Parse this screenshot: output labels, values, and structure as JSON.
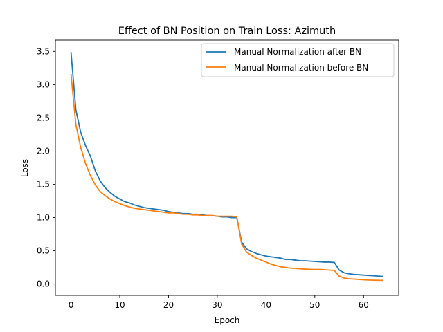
{
  "chart_data": {
    "type": "line",
    "title": "Effect of BN Position on Train Loss: Azimuth",
    "xlabel": "Epoch",
    "ylabel": "Loss",
    "xlim": [
      -3.2,
      67.2
    ],
    "ylim": [
      -0.17,
      3.67
    ],
    "xticks": [
      0,
      10,
      20,
      30,
      40,
      50,
      60
    ],
    "yticks": [
      0.0,
      0.5,
      1.0,
      1.5,
      2.0,
      2.5,
      3.0,
      3.5
    ],
    "legend_position": "top-right",
    "grid": false,
    "series": [
      {
        "name": "Manual Normalization after BN",
        "color": "#1f77b4",
        "x": [
          0,
          1,
          2,
          3,
          4,
          5,
          6,
          7,
          8,
          9,
          10,
          11,
          12,
          13,
          14,
          15,
          16,
          17,
          18,
          19,
          20,
          21,
          22,
          23,
          24,
          25,
          26,
          27,
          28,
          29,
          30,
          31,
          32,
          33,
          34,
          35,
          36,
          37,
          38,
          39,
          40,
          41,
          42,
          43,
          44,
          45,
          46,
          47,
          48,
          49,
          50,
          51,
          52,
          53,
          54,
          55,
          56,
          57,
          58,
          59,
          60,
          61,
          62,
          63,
          64
        ],
        "values": [
          3.49,
          2.62,
          2.28,
          2.08,
          1.92,
          1.7,
          1.55,
          1.45,
          1.38,
          1.32,
          1.28,
          1.24,
          1.22,
          1.19,
          1.17,
          1.15,
          1.14,
          1.13,
          1.12,
          1.11,
          1.09,
          1.08,
          1.07,
          1.06,
          1.06,
          1.05,
          1.05,
          1.04,
          1.03,
          1.03,
          1.02,
          1.01,
          1.01,
          1.0,
          1.0,
          0.63,
          0.53,
          0.49,
          0.46,
          0.44,
          0.42,
          0.41,
          0.4,
          0.39,
          0.37,
          0.37,
          0.36,
          0.35,
          0.35,
          0.345,
          0.34,
          0.335,
          0.33,
          0.33,
          0.325,
          0.21,
          0.17,
          0.155,
          0.145,
          0.14,
          0.135,
          0.13,
          0.125,
          0.12,
          0.115
        ]
      },
      {
        "name": "Manual Normalization before BN",
        "color": "#ff7f0e",
        "x": [
          0,
          1,
          2,
          3,
          4,
          5,
          6,
          7,
          8,
          9,
          10,
          11,
          12,
          13,
          14,
          15,
          16,
          17,
          18,
          19,
          20,
          21,
          22,
          23,
          24,
          25,
          26,
          27,
          28,
          29,
          30,
          31,
          32,
          33,
          34,
          35,
          36,
          37,
          38,
          39,
          40,
          41,
          42,
          43,
          44,
          45,
          46,
          47,
          48,
          49,
          50,
          51,
          52,
          53,
          54,
          55,
          56,
          57,
          58,
          59,
          60,
          61,
          62,
          63,
          64
        ],
        "values": [
          3.16,
          2.4,
          2.05,
          1.81,
          1.63,
          1.49,
          1.39,
          1.33,
          1.28,
          1.24,
          1.21,
          1.18,
          1.16,
          1.14,
          1.13,
          1.12,
          1.11,
          1.1,
          1.09,
          1.08,
          1.07,
          1.07,
          1.06,
          1.05,
          1.05,
          1.04,
          1.04,
          1.03,
          1.03,
          1.03,
          1.02,
          1.02,
          1.02,
          1.02,
          1.01,
          0.6,
          0.48,
          0.43,
          0.39,
          0.36,
          0.33,
          0.3,
          0.28,
          0.26,
          0.25,
          0.24,
          0.235,
          0.23,
          0.225,
          0.22,
          0.22,
          0.22,
          0.215,
          0.21,
          0.205,
          0.12,
          0.09,
          0.08,
          0.075,
          0.07,
          0.065,
          0.06,
          0.058,
          0.056,
          0.055
        ]
      }
    ]
  }
}
